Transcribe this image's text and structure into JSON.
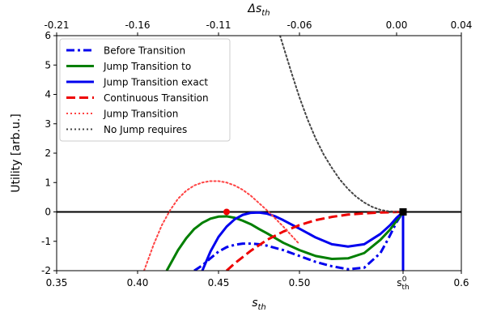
{
  "chart_data": {
    "type": "line",
    "title": "",
    "xlabel": "s_th",
    "xlabel_parts": {
      "base": "s",
      "sub": "th"
    },
    "ylabel": "Utility [arb.u.]",
    "top_xlabel": "Δs_th",
    "top_xlabel_parts": {
      "base": "Δs",
      "sub": "th"
    },
    "xlim": [
      0.35,
      0.6
    ],
    "ylim": [
      -2,
      6
    ],
    "bottom_ticks": [
      {
        "value": 0.35,
        "label": "0.35"
      },
      {
        "value": 0.4,
        "label": "0.40"
      },
      {
        "value": 0.45,
        "label": "0.45"
      },
      {
        "value": 0.5,
        "label": "0.50"
      },
      {
        "value": 0.564,
        "label": "s",
        "sub": "th",
        "sup": "0"
      },
      {
        "value": 0.6,
        "label": "0.6"
      }
    ],
    "top_ticks": [
      {
        "value": -0.21,
        "label": "-0.21"
      },
      {
        "value": -0.16,
        "label": "-0.16"
      },
      {
        "value": -0.11,
        "label": "-0.11"
      },
      {
        "value": -0.06,
        "label": "-0.06"
      },
      {
        "value": 0.0,
        "label": "0.00"
      },
      {
        "value": 0.04,
        "label": "0.04"
      }
    ],
    "y_ticks": [
      -2,
      -1,
      0,
      1,
      2,
      3,
      4,
      5,
      6
    ],
    "grid": false,
    "legend_position": "top-left",
    "reference_line_y": 0,
    "series": [
      {
        "name": "Before Transition",
        "color": "#0000ee",
        "style": "dashdot",
        "x": [
          0.435,
          0.44,
          0.445,
          0.45,
          0.455,
          0.46,
          0.465,
          0.47,
          0.475,
          0.48,
          0.49,
          0.5,
          0.51,
          0.52,
          0.53,
          0.54,
          0.55,
          0.555,
          0.56,
          0.564
        ],
        "y": [
          -2.0,
          -1.82,
          -1.58,
          -1.35,
          -1.2,
          -1.12,
          -1.08,
          -1.08,
          -1.1,
          -1.15,
          -1.3,
          -1.5,
          -1.7,
          -1.85,
          -1.95,
          -1.9,
          -1.4,
          -0.9,
          -0.35,
          0.0
        ]
      },
      {
        "name": "Jump Transition to",
        "color": "#007f00",
        "style": "solid",
        "x": [
          0.418,
          0.425,
          0.43,
          0.435,
          0.44,
          0.445,
          0.45,
          0.455,
          0.46,
          0.465,
          0.47,
          0.475,
          0.48,
          0.49,
          0.5,
          0.51,
          0.52,
          0.53,
          0.54,
          0.55,
          0.556,
          0.56,
          0.564
        ],
        "y": [
          -2.0,
          -1.3,
          -0.9,
          -0.58,
          -0.37,
          -0.23,
          -0.16,
          -0.15,
          -0.2,
          -0.3,
          -0.42,
          -0.58,
          -0.73,
          -1.05,
          -1.3,
          -1.5,
          -1.6,
          -1.58,
          -1.4,
          -0.95,
          -0.6,
          -0.3,
          0.0
        ]
      },
      {
        "name": "Jump Transition exact",
        "color": "#0000ee",
        "style": "solid",
        "x": [
          0.44,
          0.445,
          0.45,
          0.455,
          0.46,
          0.465,
          0.47,
          0.475,
          0.48,
          0.485,
          0.49,
          0.5,
          0.51,
          0.52,
          0.53,
          0.54,
          0.55,
          0.556,
          0.56,
          0.564
        ],
        "y": [
          -2.0,
          -1.35,
          -0.85,
          -0.5,
          -0.25,
          -0.1,
          -0.03,
          -0.02,
          -0.06,
          -0.15,
          -0.28,
          -0.57,
          -0.87,
          -1.1,
          -1.18,
          -1.1,
          -0.75,
          -0.45,
          -0.2,
          0.0
        ]
      },
      {
        "name": "Continuous Transition",
        "color": "#ee0000",
        "style": "dashed",
        "x": [
          0.455,
          0.46,
          0.47,
          0.48,
          0.49,
          0.5,
          0.51,
          0.52,
          0.53,
          0.54,
          0.55,
          0.56,
          0.564
        ],
        "y": [
          -2.0,
          -1.75,
          -1.32,
          -0.95,
          -0.67,
          -0.45,
          -0.28,
          -0.17,
          -0.09,
          -0.05,
          -0.02,
          -0.005,
          0.0
        ]
      },
      {
        "name": "Jump Transition",
        "color": "#ff4444",
        "style": "dotted",
        "x": [
          0.404,
          0.41,
          0.415,
          0.42,
          0.425,
          0.43,
          0.435,
          0.44,
          0.445,
          0.45,
          0.455,
          0.46,
          0.465,
          0.47,
          0.475,
          0.48,
          0.485,
          0.49,
          0.495,
          0.5
        ],
        "y": [
          -2.0,
          -1.1,
          -0.45,
          0.05,
          0.45,
          0.72,
          0.9,
          1.0,
          1.05,
          1.05,
          1.0,
          0.9,
          0.75,
          0.55,
          0.3,
          0.05,
          -0.22,
          -0.5,
          -0.8,
          -1.1
        ]
      },
      {
        "name": "No Jump requires",
        "color": "#444444",
        "style": "dotted",
        "x": [
          0.488,
          0.495,
          0.5,
          0.505,
          0.51,
          0.515,
          0.52,
          0.525,
          0.53,
          0.535,
          0.54,
          0.545,
          0.55,
          0.555,
          0.56,
          0.564
        ],
        "y": [
          6.0,
          4.75,
          3.9,
          3.15,
          2.5,
          1.95,
          1.5,
          1.1,
          0.78,
          0.52,
          0.32,
          0.17,
          0.07,
          0.02,
          0.005,
          0.0
        ]
      }
    ],
    "vertical_drops": [
      {
        "x": 0.564,
        "y_from": 0,
        "y_to": -2,
        "color": "#0000ee"
      }
    ],
    "markers": [
      {
        "x": 0.455,
        "y": 0.0,
        "shape": "circle",
        "color": "#ee0000"
      },
      {
        "x": 0.564,
        "y": 0.0,
        "shape": "square",
        "color": "#000000"
      }
    ]
  }
}
